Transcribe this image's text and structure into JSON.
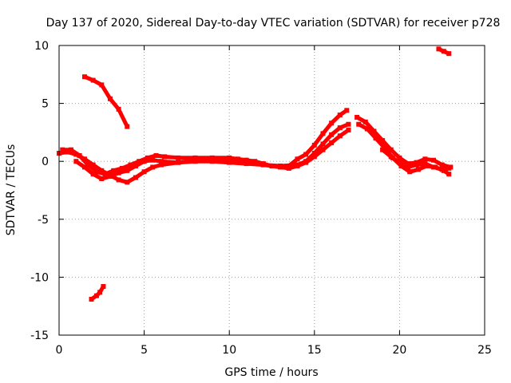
{
  "chart_data": {
    "type": "scatter",
    "title": "Day 137 of 2020, Sidereal Day-to-day VTEC variation (SDTVAR) for receiver p728",
    "xlabel": "GPS time / hours",
    "ylabel": "SDTVAR / TECUs",
    "xlim": [
      0,
      25
    ],
    "ylim": [
      -15,
      10
    ],
    "xticks": [
      0,
      5,
      10,
      15,
      20,
      25
    ],
    "yticks": [
      -15,
      -10,
      -5,
      0,
      5,
      10
    ],
    "xtick_labels": [
      "0",
      "5",
      "10",
      "15",
      "20",
      "25"
    ],
    "ytick_labels": [
      "-15",
      "-10",
      "-5",
      "0",
      "5",
      "10"
    ],
    "grid": true,
    "colors": {
      "series": "#ff0000",
      "grid": "#a0a0a0",
      "axis": "#000000"
    },
    "series": [
      {
        "name": "trace-main-a",
        "x": [
          0.0,
          0.5,
          1.0,
          1.5,
          2.0,
          2.5,
          3.0,
          3.5,
          4.0,
          4.5,
          5.0,
          5.5,
          6.0,
          7.0,
          8.0,
          9.0,
          10.0,
          11.0,
          11.5,
          12.0,
          12.5,
          13.0,
          13.5,
          14.0,
          14.5,
          15.0,
          15.5,
          16.0,
          16.5,
          17.0
        ],
        "y": [
          0.7,
          0.8,
          0.6,
          0.2,
          -0.3,
          -0.8,
          -1.2,
          -1.6,
          -1.8,
          -1.4,
          -0.9,
          -0.5,
          -0.3,
          -0.1,
          0.1,
          0.2,
          0.2,
          0.1,
          0.0,
          -0.2,
          -0.4,
          -0.5,
          -0.6,
          -0.4,
          -0.1,
          0.4,
          1.0,
          1.6,
          2.2,
          2.7
        ]
      },
      {
        "name": "trace-main-b",
        "x": [
          0.2,
          0.7,
          1.2,
          1.7,
          2.2,
          2.7,
          3.2,
          3.7,
          4.2,
          4.7,
          5.2,
          5.7,
          6.2,
          7.0,
          8.0,
          9.0,
          10.0,
          10.5,
          11.0,
          12.0,
          13.0,
          13.5,
          14.0,
          14.5,
          15.0,
          15.5,
          16.0,
          16.5,
          16.9
        ],
        "y": [
          1.0,
          1.0,
          0.5,
          -0.3,
          -0.9,
          -1.1,
          -0.8,
          -0.6,
          -0.3,
          0.0,
          0.3,
          0.5,
          0.4,
          0.3,
          0.3,
          0.3,
          0.3,
          0.2,
          0.1,
          -0.3,
          -0.5,
          -0.4,
          0.2,
          0.6,
          1.4,
          2.4,
          3.3,
          4.0,
          4.4
        ]
      },
      {
        "name": "trace-main-c",
        "x": [
          1.0,
          1.5,
          2.0,
          2.5,
          3.0,
          3.5,
          4.0,
          4.5,
          5.0,
          5.5,
          6.0,
          7.0,
          8.0,
          9.0,
          10.0,
          11.0,
          12.0,
          13.0,
          14.0,
          14.5,
          15.0,
          15.5,
          16.0,
          16.5,
          17.0
        ],
        "y": [
          0.0,
          -0.5,
          -1.1,
          -1.5,
          -1.3,
          -1.0,
          -0.8,
          -0.4,
          0.0,
          0.1,
          0.0,
          -0.1,
          0.0,
          0.0,
          -0.1,
          -0.2,
          -0.3,
          -0.4,
          -0.3,
          0.0,
          0.7,
          1.5,
          2.3,
          2.9,
          3.2
        ]
      },
      {
        "name": "trace-late-a",
        "x": [
          17.5,
          18.0,
          18.5,
          19.0,
          19.5,
          20.0,
          20.5,
          21.0,
          21.5,
          22.0,
          22.5,
          23.0
        ],
        "y": [
          3.8,
          3.4,
          2.6,
          1.8,
          1.0,
          0.3,
          -0.2,
          -0.1,
          0.2,
          0.1,
          -0.3,
          -0.5
        ]
      },
      {
        "name": "trace-late-b",
        "x": [
          17.6,
          18.1,
          18.6,
          19.1,
          19.6,
          20.1,
          20.6,
          21.1,
          21.6,
          22.1,
          22.6,
          22.9
        ],
        "y": [
          3.2,
          2.8,
          2.0,
          1.2,
          0.3,
          -0.4,
          -0.9,
          -0.7,
          -0.4,
          -0.5,
          -0.8,
          -1.1
        ]
      },
      {
        "name": "trace-late-c",
        "x": [
          19.0,
          19.5,
          20.0,
          20.5,
          21.0,
          21.5,
          22.0,
          22.5,
          22.9
        ],
        "y": [
          1.0,
          0.4,
          -0.1,
          -0.5,
          -0.3,
          -0.2,
          -0.5,
          -0.7,
          -0.6
        ]
      },
      {
        "name": "trace-early-high",
        "x": [
          1.5,
          2.0,
          2.5,
          3.0,
          3.5,
          4.0
        ],
        "y": [
          7.3,
          7.0,
          6.6,
          5.4,
          4.5,
          3.0
        ]
      },
      {
        "name": "trace-early-low",
        "x": [
          1.9,
          2.2,
          2.4,
          2.6
        ],
        "y": [
          -11.9,
          -11.6,
          -11.3,
          -10.8
        ]
      },
      {
        "name": "trace-end-high",
        "x": [
          22.3,
          22.6,
          22.9
        ],
        "y": [
          9.7,
          9.5,
          9.3
        ]
      }
    ]
  }
}
